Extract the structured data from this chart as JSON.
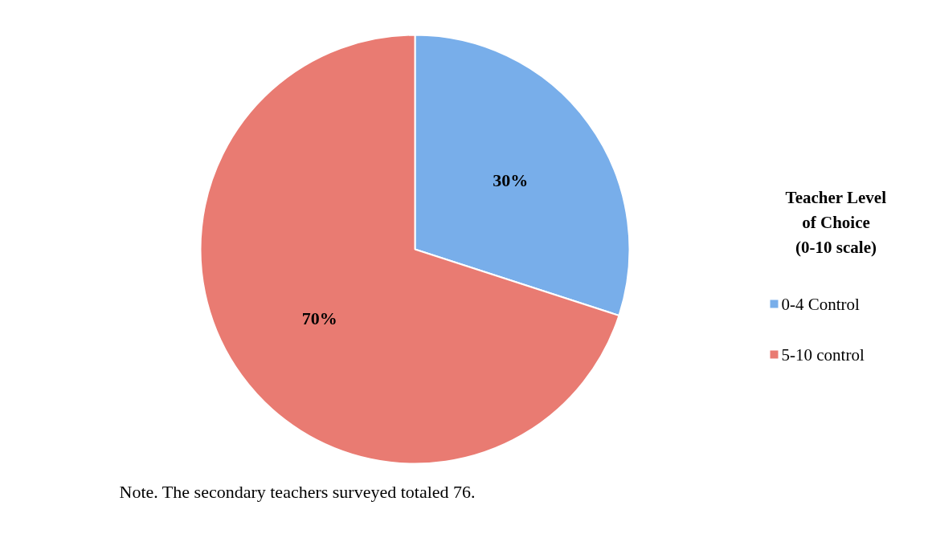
{
  "chart_data": {
    "type": "pie",
    "legend_title": "Teacher Level of Choice (0-10 scale)",
    "categories": [
      "0-4 Control",
      "5-10 control"
    ],
    "values": [
      30,
      70
    ],
    "colors": [
      "#78aeea",
      "#e97b72"
    ],
    "value_labels": [
      "30%",
      "70%"
    ],
    "legend": "right",
    "annotations": [
      "Note. The secondary teachers surveyed totaled 76."
    ]
  }
}
